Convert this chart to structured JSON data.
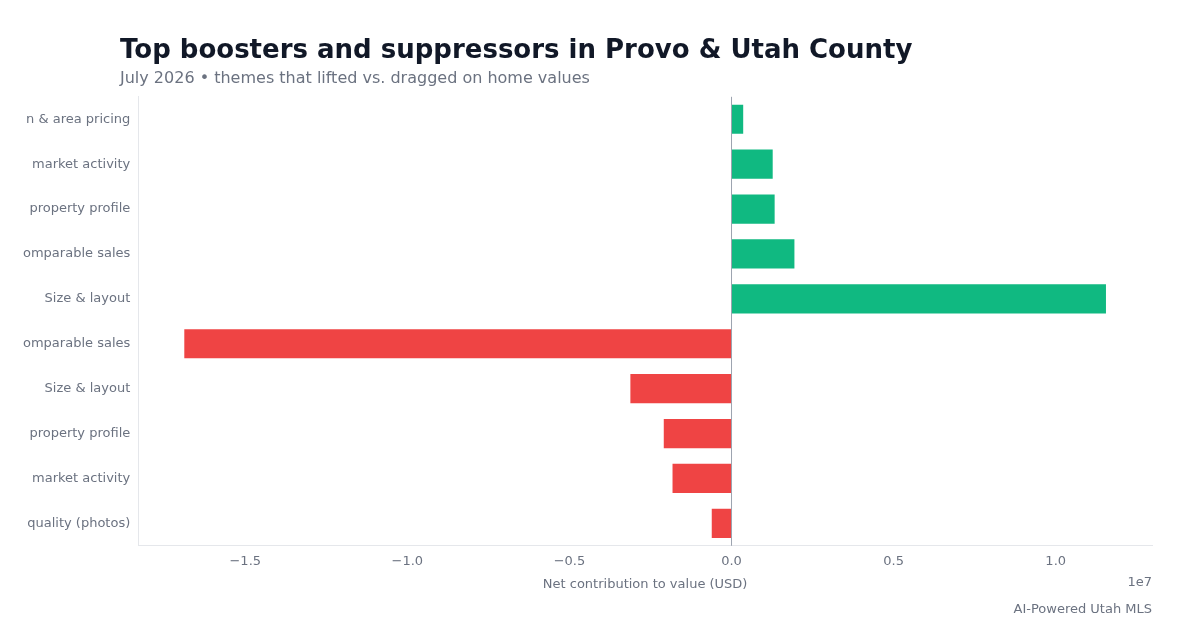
{
  "chart_data": {
    "type": "bar",
    "orientation": "horizontal",
    "title": "Top boosters and suppressors in Provo & Utah County",
    "subtitle": "July 2026 • themes that lifted vs. dragged on home values",
    "xlabel": "Net contribution to value (USD)",
    "categories": [
      "n & area pricing",
      "market activity",
      "property profile",
      "omparable sales",
      "Size & layout",
      "omparable sales",
      "Size & layout",
      "property profile",
      "market activity",
      "quality (photos)"
    ],
    "values": [
      0.036,
      0.127,
      0.133,
      0.194,
      1.155,
      -1.688,
      -0.312,
      -0.209,
      -0.182,
      -0.061
    ],
    "colors": [
      "#10b981",
      "#10b981",
      "#10b981",
      "#10b981",
      "#10b981",
      "#ef4444",
      "#ef4444",
      "#ef4444",
      "#ef4444",
      "#ef4444"
    ],
    "xlim": [
      -1.83,
      1.297
    ],
    "xticks": [
      {
        "value": -1.5,
        "label": "−1.5"
      },
      {
        "value": -1,
        "label": "−1.0"
      },
      {
        "value": -0.5,
        "label": "−0.5"
      },
      {
        "value": 0,
        "label": "0.0"
      },
      {
        "value": 0.5,
        "label": "0.5"
      },
      {
        "value": 1,
        "label": "1.0"
      }
    ],
    "ref_lines": [
      {
        "axis": "x",
        "value": 0,
        "color": "#9ca3af"
      }
    ],
    "grid": false,
    "legend": false,
    "annotations": [
      "1e7",
      "AI-Powered Utah MLS"
    ]
  }
}
